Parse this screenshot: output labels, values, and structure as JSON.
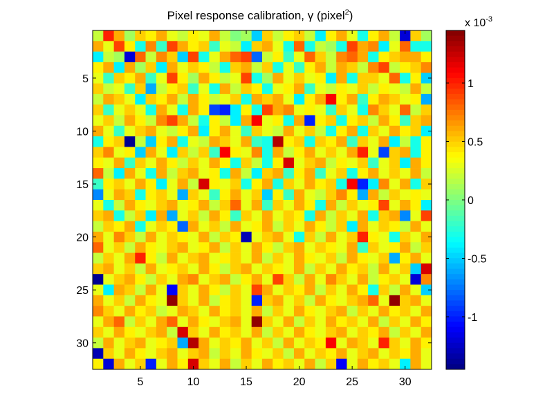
{
  "chart_data": {
    "type": "heatmap",
    "title_prefix": "Pixel response calibration, γ (pixel",
    "title_superscript": "2",
    "title_suffix": ")",
    "rows": 32,
    "cols": 32,
    "xticks": [
      5,
      10,
      15,
      20,
      25,
      30
    ],
    "yticks": [
      5,
      10,
      15,
      20,
      25,
      30
    ],
    "colorbar": {
      "colormap": "jet",
      "clim": [
        -0.00145,
        0.00145
      ],
      "ticks": [
        -1,
        -0.5,
        0,
        0.5,
        1
      ],
      "tick_labels": [
        "-1",
        "-0.5",
        "0",
        "0.5",
        "1"
      ],
      "exponent_base": "x 10",
      "exponent_power": "-3"
    },
    "value_unit_note": "values in units of 1e-3 pixel^2",
    "values": [
      [
        0.2,
        1.0,
        0.6,
        0.1,
        0.5,
        0.4,
        0.6,
        0.3,
        0.2,
        0.4,
        0.3,
        0.6,
        0.2,
        0.0,
        0.1,
        -0.5,
        0.5,
        0.2,
        0.4,
        0.5,
        0.2,
        -0.4,
        0.4,
        0.6,
        0.3,
        -0.3,
        0.4,
        0.6,
        0.2,
        -1.2,
        0.5,
        0.1
      ],
      [
        0.6,
        0.3,
        0.9,
        0.4,
        -0.3,
        0.7,
        -0.2,
        0.9,
        0.6,
        0.4,
        0.5,
        -0.2,
        0.3,
        0.2,
        -0.4,
        0.5,
        0.6,
        0.3,
        -0.3,
        0.8,
        -0.3,
        0.2,
        0.1,
        -0.3,
        0.9,
        0.6,
        0.7,
        -0.4,
        0.3,
        0.8,
        -0.3,
        -0.3
      ],
      [
        -0.4,
        0.2,
        0.1,
        -1.2,
        0.8,
        0.2,
        0.7,
        0.5,
        -0.5,
        0.9,
        -0.3,
        0.3,
        0.6,
        0.8,
        0.9,
        -0.8,
        0.2,
        0.4,
        -0.2,
        0.3,
        0.8,
        0.5,
        0.2,
        0.7,
        0.8,
        0.6,
        -0.3,
        0.4,
        0.5,
        0.6,
        0.6,
        0.4
      ],
      [
        0.4,
        0.6,
        -0.4,
        0.6,
        0.1,
        0.5,
        -0.4,
        0.6,
        0.3,
        0.5,
        0.4,
        0.2,
        -0.3,
        0.5,
        0.6,
        0.2,
        0.5,
        -0.3,
        0.3,
        -0.2,
        0.4,
        0.6,
        0.2,
        0.6,
        0.5,
        0.2,
        0.7,
        0.9,
        0.2,
        0.4,
        0.5,
        0.7
      ],
      [
        0.3,
        -0.2,
        0.5,
        0.4,
        0.6,
        -0.2,
        0.3,
        0.9,
        0.4,
        0.1,
        0.6,
        0.4,
        0.2,
        0.3,
        0.9,
        -0.3,
        0.1,
        0.6,
        0.3,
        0.5,
        0.3,
        0.4,
        -0.4,
        0.6,
        -0.3,
        0.5,
        0.5,
        0.3,
        0.8,
        -0.3,
        0.4,
        -0.5
      ],
      [
        0.5,
        0.2,
        0.3,
        -0.2,
        0.5,
        -0.6,
        0.2,
        0.4,
        0.5,
        -0.2,
        0.3,
        -0.3,
        0.6,
        0.2,
        0.5,
        0.4,
        -0.3,
        0.3,
        0.4,
        0.6,
        -0.2,
        0.3,
        0.2,
        0.4,
        0.3,
        0.5,
        0.2,
        0.4,
        0.3,
        0.2,
        0.6,
        0.2
      ],
      [
        0.2,
        0.6,
        0.5,
        0.3,
        -0.4,
        0.5,
        0.4,
        0.6,
        0.2,
        0.6,
        0.4,
        0.2,
        0.3,
        0.5,
        -0.3,
        0.6,
        0.5,
        0.6,
        0.3,
        -0.4,
        0.4,
        0.6,
        1.1,
        0.4,
        0.6,
        -0.2,
        0.4,
        0.6,
        0.5,
        0.3,
        0.4,
        -0.6
      ],
      [
        0.5,
        -0.2,
        0.3,
        0.5,
        0.3,
        -0.3,
        0.6,
        0.3,
        -0.3,
        0.6,
        0.4,
        -0.9,
        -1.0,
        -0.4,
        0.4,
        -0.3,
        0.9,
        0.6,
        0.7,
        0.3,
        0.4,
        0.3,
        -0.2,
        0.5,
        0.3,
        -0.3,
        0.7,
        0.5,
        0.3,
        0.8,
        0.2,
        0.5
      ],
      [
        0.3,
        0.5,
        0.2,
        0.6,
        0.4,
        0.2,
        0.7,
        0.9,
        0.6,
        0.2,
        -0.3,
        0.4,
        0.2,
        -0.4,
        0.6,
        1.1,
        0.3,
        0.4,
        -0.3,
        0.6,
        -1.0,
        0.4,
        0.5,
        -0.3,
        0.4,
        0.5,
        0.2,
        0.6,
        0.4,
        -0.2,
        0.5,
        0.6
      ],
      [
        0.6,
        0.3,
        -0.2,
        0.3,
        0.5,
        0.6,
        0.3,
        0.2,
        0.4,
        0.6,
        -0.4,
        0.4,
        0.6,
        0.3,
        -0.2,
        0.5,
        0.3,
        0.2,
        0.6,
        0.3,
        0.5,
        0.2,
        -0.3,
        0.4,
        0.6,
        -0.3,
        0.5,
        0.3,
        0.6,
        0.4,
        0.5,
        -0.4
      ],
      [
        -0.3,
        0.4,
        0.5,
        -1.4,
        0.2,
        -0.5,
        0.4,
        0.6,
        -0.3,
        0.3,
        0.2,
        0.6,
        0.5,
        0.3,
        0.6,
        -0.2,
        -0.3,
        1.3,
        0.4,
        0.5,
        -0.3,
        0.5,
        0.4,
        0.6,
        -0.2,
        0.5,
        0.3,
        0.6,
        -0.4,
        0.2,
        -0.3,
        0.4
      ],
      [
        0.5,
        0.7,
        0.3,
        0.4,
        -0.5,
        0.6,
        0.3,
        -0.4,
        0.5,
        0.2,
        0.5,
        -0.2,
        1.1,
        0.4,
        0.3,
        0.7,
        -0.3,
        0.6,
        0.2,
        0.4,
        0.6,
        0.3,
        0.5,
        0.3,
        0.6,
        1.0,
        0.3,
        -0.9,
        0.5,
        0.6,
        -0.3,
        0.4
      ],
      [
        0.4,
        0.3,
        0.6,
        -0.2,
        0.5,
        0.3,
        0.6,
        0.4,
        0.2,
        0.5,
        0.3,
        0.6,
        0.4,
        -0.3,
        0.5,
        0.2,
        -0.3,
        0.4,
        1.2,
        0.3,
        0.5,
        0.6,
        0.2,
        0.4,
        0.3,
        0.5,
        -0.2,
        0.3,
        0.5,
        -0.4,
        0.6,
        0.4
      ],
      [
        0.8,
        0.2,
        -0.4,
        0.6,
        0.3,
        -0.3,
        0.6,
        0.2,
        0.5,
        0.6,
        0.3,
        0.4,
        -0.3,
        0.6,
        0.2,
        -0.4,
        0.5,
        0.6,
        -0.2,
        0.4,
        0.6,
        -0.2,
        0.3,
        0.5,
        -0.3,
        0.4,
        0.6,
        0.3,
        0.5,
        0.3,
        0.6,
        0.2
      ],
      [
        -0.2,
        0.4,
        0.5,
        0.3,
        0.6,
        0.4,
        -0.4,
        0.3,
        0.6,
        0.2,
        1.2,
        0.4,
        0.3,
        0.5,
        -0.3,
        0.4,
        0.6,
        -0.3,
        0.5,
        0.3,
        0.6,
        0.4,
        0.5,
        -0.3,
        1.1,
        -1.0,
        -0.4,
        0.7,
        0.3,
        0.6,
        -0.3,
        0.5
      ],
      [
        -0.7,
        0.3,
        0.6,
        0.5,
        -0.3,
        0.4,
        0.5,
        0.3,
        -0.6,
        0.5,
        0.3,
        -0.2,
        0.4,
        0.6,
        0.3,
        0.5,
        -0.5,
        0.4,
        -0.2,
        0.6,
        0.3,
        0.2,
        0.5,
        0.7,
        0.4,
        -0.6,
        0.6,
        0.2,
        0.5,
        0.3,
        0.4,
        0.3
      ],
      [
        0.3,
        -0.3,
        0.2,
        0.6,
        0.4,
        0.3,
        0.5,
        0.6,
        0.3,
        0.4,
        0.6,
        0.2,
        0.5,
        0.8,
        0.3,
        0.6,
        -0.2,
        0.5,
        0.3,
        0.6,
        0.4,
        -0.3,
        0.6,
        0.2,
        0.5,
        0.3,
        0.4,
        0.9,
        0.3,
        0.6,
        0.4,
        -0.4
      ],
      [
        0.5,
        0.6,
        -0.3,
        0.2,
        0.5,
        -0.4,
        0.6,
        -0.6,
        0.3,
        0.5,
        0.2,
        0.6,
        0.4,
        -0.2,
        0.5,
        0.3,
        0.6,
        0.3,
        0.5,
        0.4,
        -0.3,
        0.6,
        0.2,
        0.5,
        0.3,
        0.6,
        -0.3,
        0.5,
        0.6,
        -0.7,
        0.3,
        0.9
      ],
      [
        0.2,
        0.5,
        0.4,
        0.6,
        -0.3,
        0.3,
        0.5,
        0.4,
        -0.8,
        0.6,
        0.3,
        0.5,
        0.2,
        0.6,
        0.3,
        0.4,
        0.6,
        0.2,
        0.5,
        0.3,
        0.6,
        0.4,
        0.2,
        0.5,
        -0.4,
        0.6,
        0.3,
        0.5,
        0.4,
        0.2,
        0.6,
        0.3
      ],
      [
        0.6,
        0.3,
        0.7,
        0.5,
        0.2,
        0.6,
        0.3,
        0.5,
        0.4,
        0.3,
        0.6,
        0.2,
        0.5,
        0.4,
        -1.3,
        0.3,
        0.5,
        0.6,
        0.3,
        -0.3,
        0.5,
        0.2,
        0.6,
        0.3,
        0.5,
        1.0,
        0.4,
        0.3,
        -0.3,
        0.5,
        0.3,
        0.6
      ],
      [
        0.8,
        0.3,
        0.5,
        0.2,
        0.6,
        0.4,
        0.3,
        0.5,
        0.6,
        0.3,
        0.4,
        0.6,
        0.2,
        0.5,
        0.3,
        0.6,
        0.4,
        0.2,
        0.5,
        0.6,
        0.3,
        0.5,
        0.4,
        0.3,
        0.6,
        -0.2,
        0.5,
        0.3,
        0.4,
        0.6,
        0.2,
        0.5
      ],
      [
        0.2,
        0.5,
        0.3,
        0.6,
        1.0,
        0.4,
        0.2,
        0.6,
        0.3,
        0.5,
        0.6,
        0.3,
        0.4,
        0.5,
        0.3,
        0.6,
        0.2,
        0.5,
        0.3,
        0.6,
        0.4,
        0.3,
        0.5,
        0.2,
        0.6,
        0.4,
        0.3,
        0.5,
        -0.6,
        0.4,
        0.6,
        0.3
      ],
      [
        0.5,
        0.6,
        0.3,
        0.5,
        0.2,
        0.6,
        0.3,
        0.4,
        0.5,
        0.3,
        0.6,
        0.4,
        0.2,
        0.5,
        0.6,
        0.3,
        0.5,
        0.4,
        0.3,
        0.6,
        0.2,
        0.5,
        0.3,
        0.6,
        0.4,
        0.5,
        0.2,
        0.6,
        0.3,
        0.5,
        -0.5,
        1.2
      ],
      [
        -1.4,
        0.3,
        0.5,
        0.6,
        0.4,
        0.2,
        0.5,
        0.3,
        0.6,
        0.7,
        0.3,
        0.5,
        0.6,
        0.2,
        0.4,
        0.6,
        0.3,
        0.9,
        0.5,
        0.2,
        0.6,
        0.3,
        0.7,
        0.5,
        0.3,
        0.6,
        0.2,
        0.4,
        0.5,
        0.3,
        -1.2,
        0.7
      ],
      [
        0.3,
        -0.4,
        0.6,
        0.5,
        0.2,
        0.6,
        0.3,
        -1.1,
        0.5,
        0.3,
        0.6,
        0.4,
        0.2,
        0.5,
        0.3,
        0.9,
        0.6,
        0.3,
        0.5,
        0.4,
        0.6,
        0.2,
        0.5,
        0.3,
        0.6,
        0.4,
        -0.3,
        0.5,
        0.2,
        0.6,
        0.3,
        -0.5
      ],
      [
        0.6,
        0.3,
        0.5,
        0.2,
        0.6,
        0.4,
        0.3,
        1.4,
        0.5,
        0.3,
        0.6,
        0.2,
        0.4,
        0.5,
        0.3,
        -1.0,
        0.5,
        0.6,
        0.3,
        0.5,
        0.2,
        0.6,
        0.4,
        0.3,
        0.5,
        0.6,
        0.8,
        0.3,
        1.4,
        0.5,
        0.6,
        0.3
      ],
      [
        0.7,
        0.5,
        0.3,
        0.6,
        0.4,
        0.5,
        0.2,
        0.3,
        0.6,
        0.5,
        0.3,
        0.6,
        0.4,
        0.5,
        0.3,
        0.6,
        0.2,
        0.5,
        0.3,
        0.6,
        0.4,
        0.3,
        0.5,
        0.6,
        0.2,
        0.5,
        0.3,
        0.6,
        0.4,
        0.5,
        0.3,
        0.6
      ],
      [
        0.3,
        0.6,
        0.8,
        0.2,
        0.5,
        0.3,
        0.6,
        0.8,
        0.3,
        0.6,
        0.4,
        0.3,
        0.5,
        0.6,
        0.3,
        1.4,
        0.5,
        0.3,
        0.6,
        0.2,
        0.5,
        0.3,
        0.6,
        0.4,
        0.5,
        0.3,
        0.6,
        0.2,
        0.5,
        0.3,
        0.6,
        0.4
      ],
      [
        0.5,
        0.3,
        0.6,
        0.4,
        0.3,
        0.5,
        0.6,
        0.2,
        1.2,
        0.5,
        0.3,
        0.6,
        0.4,
        0.5,
        0.3,
        0.6,
        0.2,
        0.5,
        0.3,
        0.6,
        0.4,
        0.3,
        0.5,
        0.6,
        0.3,
        0.5,
        0.4,
        0.6,
        0.2,
        0.5,
        0.3,
        0.6
      ],
      [
        0.2,
        0.6,
        0.3,
        0.5,
        0.6,
        0.3,
        0.4,
        0.5,
        -0.6,
        1.3,
        0.6,
        0.3,
        0.5,
        0.4,
        0.6,
        0.3,
        0.5,
        0.2,
        0.6,
        0.3,
        0.5,
        0.4,
        1.1,
        0.3,
        0.6,
        0.5,
        0.3,
        1.0,
        0.5,
        0.3,
        0.6,
        0.4
      ],
      [
        -1.3,
        0.5,
        0.3,
        0.6,
        0.4,
        0.3,
        0.5,
        0.6,
        0.3,
        0.5,
        0.6,
        0.2,
        0.5,
        0.3,
        0.6,
        0.4,
        0.3,
        0.5,
        0.2,
        0.6,
        0.3,
        0.5,
        0.4,
        0.6,
        0.3,
        0.5,
        0.6,
        0.3,
        0.5,
        0.4,
        0.6,
        0.3
      ],
      [
        0.4,
        -1.2,
        0.6,
        0.3,
        0.5,
        -1.0,
        0.3,
        0.6,
        0.4,
        1.2,
        0.5,
        0.3,
        0.6,
        0.2,
        0.5,
        0.3,
        0.6,
        0.4,
        0.5,
        0.3,
        0.6,
        0.2,
        0.5,
        -1.1,
        0.3,
        0.6,
        0.4,
        0.5,
        0.3,
        -0.4,
        0.6,
        0.3
      ]
    ]
  }
}
